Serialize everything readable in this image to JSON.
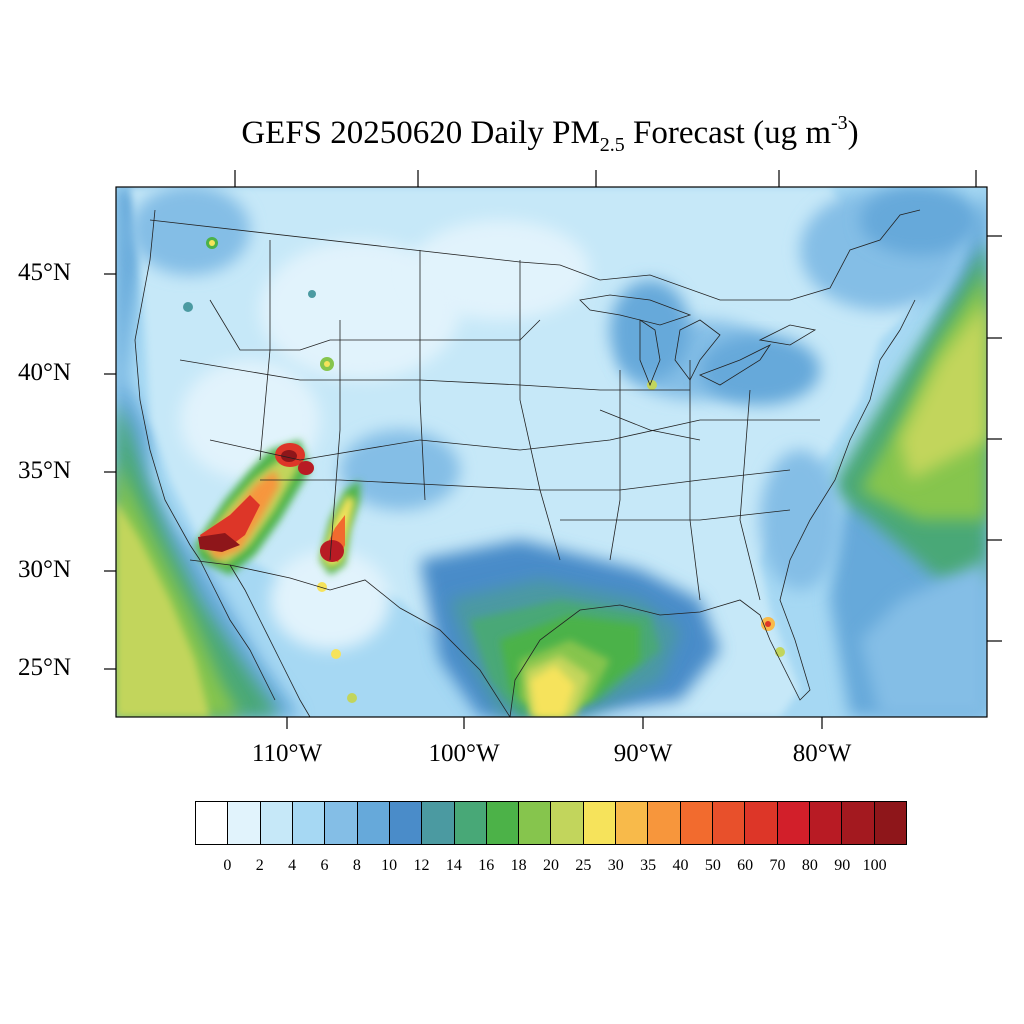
{
  "title": {
    "main": "GEFS 20250620 Daily PM",
    "subscript": "2.5",
    "middle": " Forecast (ug m",
    "superscript": "-3",
    "end": ")"
  },
  "map": {
    "lat_labels": [
      "45°N",
      "40°N",
      "35°N",
      "30°N",
      "25°N"
    ],
    "lon_labels": [
      "110°W",
      "100°W",
      "90°W",
      "80°W"
    ]
  },
  "colorbar": {
    "colors": [
      "#ffffff",
      "#e1f3fc",
      "#c6e8f8",
      "#a6d8f3",
      "#84bee6",
      "#66a9da",
      "#4a8cc9",
      "#4b9aa1",
      "#48a877",
      "#4cb248",
      "#86c54d",
      "#c2d55c",
      "#f6e35b",
      "#f8ba4a",
      "#f7963c",
      "#f26b2e",
      "#e8502b",
      "#dd3628",
      "#d21f2a",
      "#b81b24",
      "#a3191f",
      "#8e161a"
    ],
    "labels": [
      "0",
      "2",
      "4",
      "6",
      "8",
      "10",
      "12",
      "14",
      "16",
      "18",
      "20",
      "25",
      "30",
      "35",
      "40",
      "50",
      "60",
      "70",
      "80",
      "90",
      "100"
    ]
  },
  "palette": {
    "ocean_far": "#c6e8f8",
    "ocean_gulf_stream": "#4cb248",
    "land_base": "#c6e8f8",
    "border": "#333333"
  }
}
